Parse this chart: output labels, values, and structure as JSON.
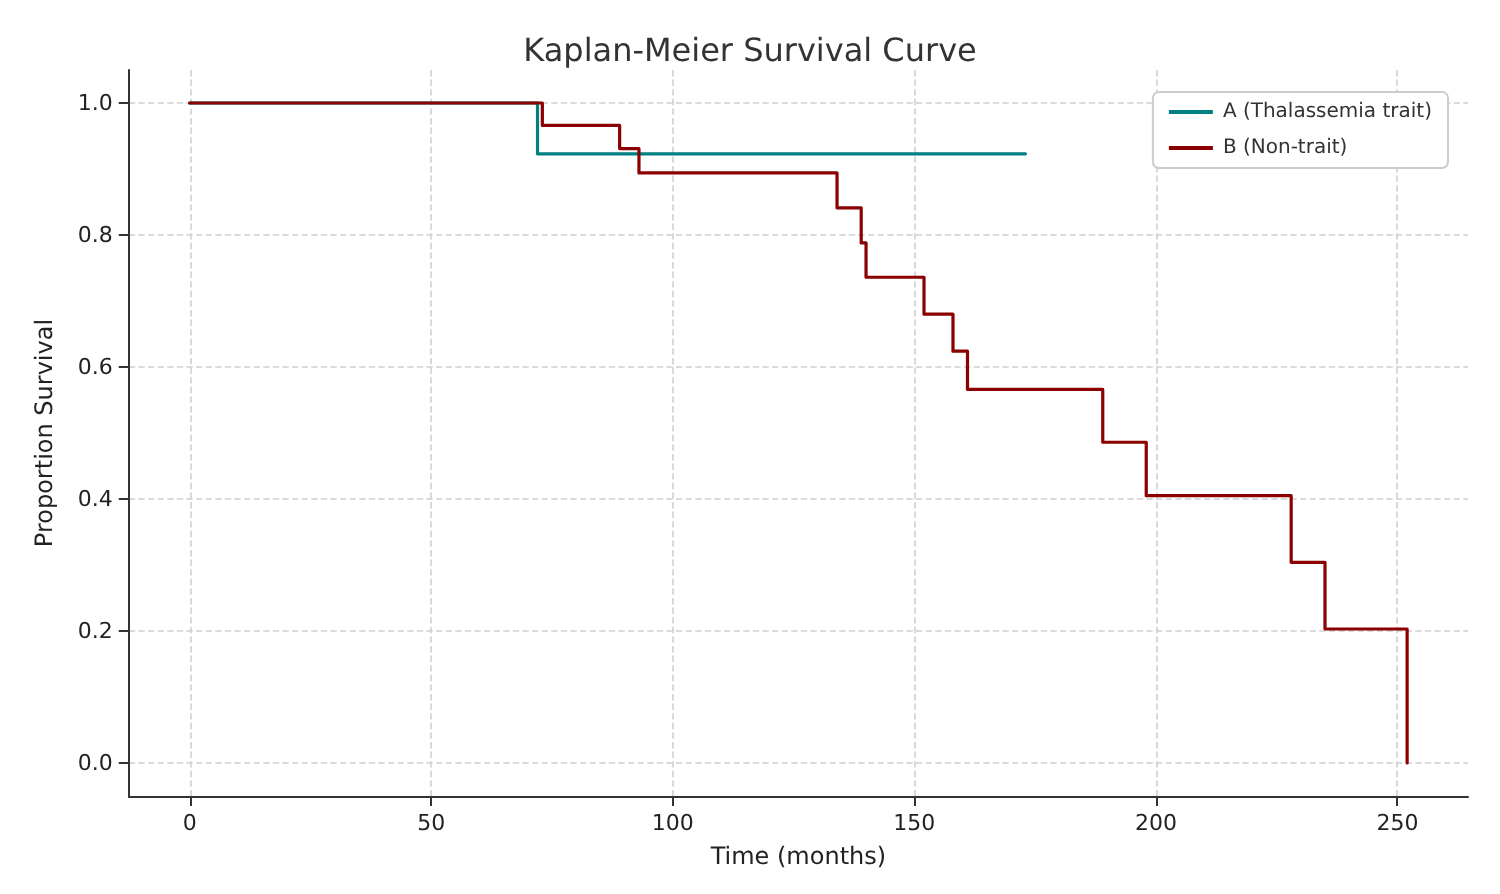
{
  "chart_data": {
    "type": "step",
    "title": "Kaplan-Meier Survival Curve",
    "xlabel": "Time (months)",
    "ylabel": "Proportion Survival",
    "series": [
      {
        "name": "A (Thalassemia trait)",
        "color": "#008080",
        "x": [
          0,
          72,
          173
        ],
        "values": [
          1.0,
          0.923,
          0.923
        ]
      },
      {
        "name": "B (Non-trait)",
        "color": "#8b0000",
        "x": [
          0,
          73,
          89,
          93,
          134,
          139,
          140,
          152,
          158,
          161,
          189,
          198,
          228,
          235,
          252
        ],
        "values": [
          1.0,
          0.966,
          0.931,
          0.894,
          0.841,
          0.788,
          0.736,
          0.68,
          0.624,
          0.566,
          0.486,
          0.405,
          0.304,
          0.203,
          0.0
        ]
      }
    ],
    "xlim": [
      -12.6,
      264.6
    ],
    "ylim": [
      -0.05,
      1.05
    ],
    "xticks": [
      0,
      50,
      100,
      150,
      200,
      250
    ],
    "yticks": [
      {
        "value": 0,
        "label": "0.0"
      },
      0.2,
      0.4,
      0.6,
      0.8,
      {
        "value": 1,
        "label": "1.0"
      }
    ],
    "grid": true,
    "legend": "top right",
    "line_style": "solid",
    "marker": "none"
  }
}
